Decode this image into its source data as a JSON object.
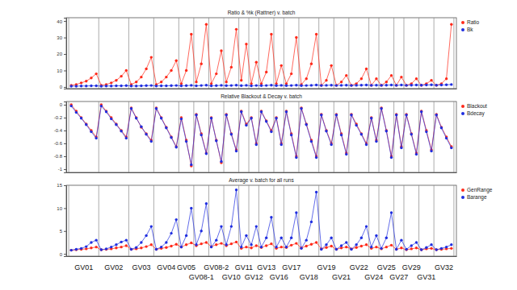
{
  "chart_data": [
    {
      "type": "line",
      "title": "Ratio & %k (Rattner) v. batch",
      "tick_labels": "y",
      "legend": "right",
      "x": [
        0,
        1,
        2,
        3,
        4,
        5,
        6,
        7,
        8,
        9,
        10,
        11,
        12,
        13,
        14,
        15,
        16,
        17,
        18,
        19,
        20,
        21,
        22,
        23,
        24,
        25,
        26,
        27,
        28,
        29,
        30,
        31,
        32,
        33,
        34,
        35,
        36,
        37,
        38,
        39,
        40,
        41,
        42,
        43,
        44,
        45,
        46,
        47,
        48,
        49,
        50,
        51,
        52,
        53,
        54,
        55,
        56,
        57,
        58,
        59,
        60,
        61,
        62,
        63,
        64,
        65,
        66,
        67,
        68,
        69,
        70,
        71,
        72,
        73,
        74,
        75,
        76
      ],
      "xlim": [
        -1,
        77
      ],
      "ylim": [
        -1,
        42
      ],
      "yticks": [
        0,
        10,
        20,
        30,
        40
      ],
      "series": [
        {
          "name": "Ratio",
          "color": "#ff2a1a",
          "marker": "circle",
          "line_style": "solid",
          "values": [
            1,
            1.5,
            2.5,
            3.5,
            5.5,
            8,
            1,
            1.5,
            2.5,
            4,
            6.5,
            10,
            1.5,
            3,
            6,
            11,
            18,
            1.5,
            3,
            6,
            10,
            16,
            2,
            10,
            32,
            3,
            14,
            38,
            2,
            8,
            22,
            3,
            12,
            35,
            4,
            26,
            2,
            15,
            2,
            9,
            32,
            2,
            13,
            2,
            8,
            30,
            1.5,
            5,
            14,
            32,
            1,
            4,
            13,
            1,
            3,
            7,
            1,
            2,
            5,
            11,
            1,
            5,
            1,
            3,
            7,
            1,
            6,
            1,
            2,
            5,
            1,
            2,
            4,
            1,
            2,
            5,
            38
          ]
        },
        {
          "name": "Bk",
          "color": "#1f2ee0",
          "marker": "circle",
          "line_style": "solid",
          "values": [
            0.5,
            0.5,
            0.6,
            0.6,
            0.7,
            0.7,
            0.5,
            0.6,
            0.6,
            0.7,
            0.7,
            0.8,
            0.6,
            0.6,
            0.7,
            0.8,
            0.9,
            0.6,
            0.7,
            0.7,
            0.8,
            0.9,
            0.7,
            0.8,
            1,
            0.7,
            0.9,
            1.1,
            0.7,
            0.8,
            1,
            0.8,
            0.9,
            1.1,
            0.8,
            1,
            0.7,
            0.9,
            0.8,
            0.9,
            1.1,
            0.8,
            1,
            0.8,
            0.9,
            1.1,
            0.8,
            0.9,
            1,
            1.2,
            0.9,
            1,
            1.1,
            0.9,
            1,
            1.1,
            0.9,
            1,
            1.1,
            1.2,
            1,
            1.1,
            1,
            1.1,
            1.2,
            1,
            1.2,
            1,
            1.1,
            1.2,
            1.1,
            1.2,
            1.3,
            1.1,
            1.2,
            1.3,
            1.5
          ]
        }
      ]
    },
    {
      "type": "line",
      "title": "Relative Blackout & Decay v. batch",
      "tick_labels": "y",
      "legend": "right",
      "x": [
        0,
        1,
        2,
        3,
        4,
        5,
        6,
        7,
        8,
        9,
        10,
        11,
        12,
        13,
        14,
        15,
        16,
        17,
        18,
        19,
        20,
        21,
        22,
        23,
        24,
        25,
        26,
        27,
        28,
        29,
        30,
        31,
        32,
        33,
        34,
        35,
        36,
        37,
        38,
        39,
        40,
        41,
        42,
        43,
        44,
        45,
        46,
        47,
        48,
        49,
        50,
        51,
        52,
        53,
        54,
        55,
        56,
        57,
        58,
        59,
        60,
        61,
        62,
        63,
        64,
        65,
        66,
        67,
        68,
        69,
        70,
        71,
        72,
        73,
        74,
        75,
        76
      ],
      "xlim": [
        -1,
        77
      ],
      "ylim": [
        -1.05,
        0.05
      ],
      "yticks": [
        -1,
        -0.8,
        -0.6,
        -0.4,
        -0.2,
        0
      ],
      "series": [
        {
          "name": "Blackout",
          "color": "#ff2a1a",
          "marker": "circle",
          "line_style": "solid",
          "values": [
            0,
            -0.1,
            -0.2,
            -0.3,
            -0.4,
            -0.5,
            0,
            -0.1,
            -0.2,
            -0.3,
            -0.4,
            -0.5,
            -0.05,
            -0.2,
            -0.35,
            -0.45,
            -0.55,
            -0.05,
            -0.2,
            -0.35,
            -0.5,
            -0.65,
            -0.2,
            -0.55,
            -0.95,
            -0.15,
            -0.45,
            -0.75,
            -0.2,
            -0.55,
            -0.9,
            -0.15,
            -0.45,
            -0.7,
            -0.1,
            -0.3,
            -0.2,
            -0.6,
            -0.1,
            -0.25,
            -0.4,
            -0.2,
            -0.6,
            -0.1,
            -0.45,
            -0.8,
            -0.05,
            -0.3,
            -0.55,
            -0.8,
            -0.15,
            -0.4,
            -0.6,
            -0.15,
            -0.45,
            -0.75,
            -0.15,
            -0.3,
            -0.45,
            -0.6,
            -0.2,
            -0.55,
            -0.05,
            -0.4,
            -0.8,
            -0.15,
            -0.65,
            -0.15,
            -0.45,
            -0.75,
            -0.1,
            -0.4,
            -0.7,
            -0.15,
            -0.35,
            -0.5,
            -0.65
          ]
        },
        {
          "name": "Bdecay",
          "color": "#1f2ee0",
          "marker": "circle",
          "line_style": "solid",
          "values": [
            -0.02,
            -0.12,
            -0.21,
            -0.31,
            -0.42,
            -0.52,
            -0.02,
            -0.11,
            -0.22,
            -0.31,
            -0.41,
            -0.52,
            -0.06,
            -0.21,
            -0.34,
            -0.46,
            -0.57,
            -0.06,
            -0.21,
            -0.36,
            -0.51,
            -0.66,
            -0.22,
            -0.57,
            -0.93,
            -0.16,
            -0.47,
            -0.76,
            -0.21,
            -0.56,
            -0.88,
            -0.16,
            -0.46,
            -0.72,
            -0.11,
            -0.32,
            -0.21,
            -0.62,
            -0.11,
            -0.26,
            -0.42,
            -0.21,
            -0.62,
            -0.11,
            -0.47,
            -0.82,
            -0.06,
            -0.31,
            -0.57,
            -0.82,
            -0.16,
            -0.41,
            -0.62,
            -0.16,
            -0.47,
            -0.77,
            -0.16,
            -0.32,
            -0.46,
            -0.62,
            -0.21,
            -0.57,
            -0.06,
            -0.41,
            -0.82,
            -0.16,
            -0.67,
            -0.16,
            -0.46,
            -0.77,
            -0.11,
            -0.42,
            -0.72,
            -0.16,
            -0.36,
            -0.52,
            -0.67
          ]
        }
      ]
    },
    {
      "type": "line",
      "title": "Average v. batch for all runs",
      "tick_labels": "y",
      "legend": "right",
      "x": [
        0,
        1,
        2,
        3,
        4,
        5,
        6,
        7,
        8,
        9,
        10,
        11,
        12,
        13,
        14,
        15,
        16,
        17,
        18,
        19,
        20,
        21,
        22,
        23,
        24,
        25,
        26,
        27,
        28,
        29,
        30,
        31,
        32,
        33,
        34,
        35,
        36,
        37,
        38,
        39,
        40,
        41,
        42,
        43,
        44,
        45,
        46,
        47,
        48,
        49,
        50,
        51,
        52,
        53,
        54,
        55,
        56,
        57,
        58,
        59,
        60,
        61,
        62,
        63,
        64,
        65,
        66,
        67,
        68,
        69,
        70,
        71,
        72,
        73,
        74,
        75,
        76
      ],
      "xlim": [
        -1,
        77
      ],
      "ylim": [
        -0.5,
        15
      ],
      "yticks": [
        0,
        5,
        10,
        15
      ],
      "series": [
        {
          "name": "GenRange",
          "color": "#ff2a1a",
          "marker": "circle",
          "line_style": "solid",
          "values": [
            0.8,
            0.9,
            1,
            1.1,
            1.3,
            1.5,
            0.9,
            1,
            1.1,
            1.3,
            1.5,
            1.8,
            1,
            1.1,
            1.3,
            1.6,
            2,
            1,
            1.2,
            1.4,
            1.7,
            2.1,
            1.5,
            2,
            2.4,
            1.8,
            2.2,
            2.5,
            1.6,
            2,
            2.3,
            1.8,
            2.2,
            2.6,
            1.2,
            1.5,
            1.3,
            1.8,
            1.4,
            1.8,
            2.2,
            1.2,
            1.5,
            1.4,
            1.9,
            2.3,
            1.3,
            1.7,
            2.1,
            2.5,
            1.1,
            1.4,
            1.7,
            1,
            1.3,
            1.5,
            1.1,
            1.4,
            1.7,
            2,
            1.2,
            1.5,
            1.1,
            1.5,
            1.9,
            1,
            1.3,
            0.9,
            1.1,
            1.3,
            0.9,
            1.1,
            1.2,
            0.9,
            1,
            1.1,
            1.2
          ]
        },
        {
          "name": "Barange",
          "color": "#1f2ee0",
          "marker": "circle",
          "line_style": "solid",
          "values": [
            0.8,
            1,
            1.2,
            1.6,
            2.5,
            3,
            0.9,
            1.1,
            1.5,
            2,
            2.6,
            3,
            1,
            1.4,
            2.5,
            4,
            6,
            1,
            1.5,
            2.5,
            4.5,
            7.5,
            1.5,
            4,
            10,
            2,
            5,
            11,
            1.5,
            3,
            6,
            2,
            6,
            14,
            1.5,
            4,
            2,
            6,
            1.5,
            3.5,
            8,
            1.5,
            3.5,
            1.5,
            3.5,
            9,
            1.2,
            3,
            7,
            13.5,
            1,
            2,
            3.5,
            1,
            1.8,
            2.5,
            1,
            2,
            3.5,
            6,
            1.5,
            4,
            1.2,
            3.5,
            9,
            1,
            3,
            1,
            1.8,
            2.5,
            0.9,
            1.4,
            2,
            0.9,
            1.2,
            1.5,
            2
          ]
        }
      ],
      "groups": {
        "labels": [
          "GV01",
          "GV02",
          "GV03",
          "GV04",
          "GV05",
          "GV08-1",
          "GV08-2",
          "GV10",
          "GV11",
          "GV12",
          "GV13",
          "GV16",
          "GV17",
          "GV18",
          "GV19",
          "GV21",
          "GV22",
          "GV24",
          "GV25",
          "GV27",
          "GV29",
          "GV31",
          "GV32"
        ],
        "edges": [
          -0.5,
          5.5,
          11.5,
          16.5,
          21.5,
          24.5,
          27.5,
          30.5,
          33.5,
          35.5,
          37.5,
          40.5,
          42.5,
          45.5,
          49.5,
          52.5,
          55.5,
          59.5,
          61.5,
          64.5,
          66.5,
          69.5,
          72.5,
          76.5
        ]
      }
    }
  ]
}
